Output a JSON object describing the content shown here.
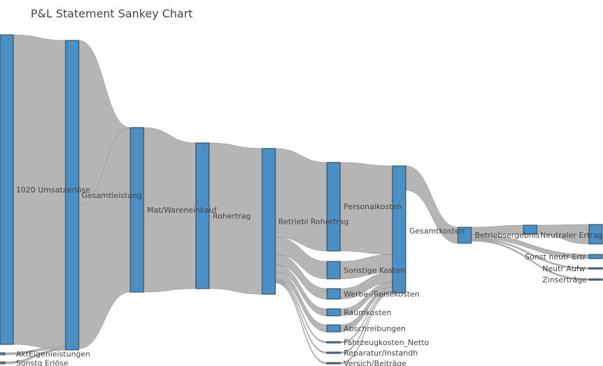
{
  "chart_data": {
    "type": "sankey",
    "title": "P&L Statement Sankey Chart",
    "colors": {
      "node": "#4a90c6",
      "node_stroke": "#2a3d4f",
      "link": "#b5b5b5",
      "link_stroke": "#8a8a8a",
      "text": "#444444"
    },
    "nodes": [
      {
        "id": "umsatz",
        "label": "1020 Umsatzerlöse"
      },
      {
        "id": "akteigen",
        "label": "AktEigenleistungen"
      },
      {
        "id": "sonstberl",
        "label": "Sonstg Erlöse"
      },
      {
        "id": "gesamtl",
        "label": "Gesamtleistung"
      },
      {
        "id": "matware",
        "label": "Mat/Wareneinkauf"
      },
      {
        "id": "rohertrag",
        "label": "Rohertrag"
      },
      {
        "id": "betriebroh",
        "label": "Betriebl Rohertrag"
      },
      {
        "id": "personal",
        "label": "Personalkosten"
      },
      {
        "id": "sonstkost",
        "label": "Sonstige Kosten"
      },
      {
        "id": "werbe",
        "label": "Werbe-/Reisekosten"
      },
      {
        "id": "raum",
        "label": "Raumkosten"
      },
      {
        "id": "abschr",
        "label": "Abschreibungen"
      },
      {
        "id": "fahrzeug",
        "label": "Fahrzeugkosten_Netto"
      },
      {
        "id": "reparatur",
        "label": "Reparatur/Instandh"
      },
      {
        "id": "versich",
        "label": "Versich/Beiträge"
      },
      {
        "id": "gesamtkost",
        "label": "Gesamtkosten"
      },
      {
        "id": "betriebserg",
        "label": "Betriebsergebnis"
      },
      {
        "id": "neutraler",
        "label": "Neutraler Ertrag"
      },
      {
        "id": "sonstneutr",
        "label": "Sonst neutr Ertr"
      },
      {
        "id": "neutraufw",
        "label": "Neutr Aufw"
      },
      {
        "id": "zins",
        "label": "Zinserträge"
      }
    ],
    "links": [
      {
        "source": "umsatz",
        "target": "gesamtl",
        "value": 100
      },
      {
        "source": "akteigen",
        "target": "gesamtl",
        "value": 0.4
      },
      {
        "source": "sonstberl",
        "target": "gesamtl",
        "value": 0.3
      },
      {
        "source": "gesamtl",
        "target": "rohertrag",
        "value": 51
      },
      {
        "source": "gesamtl",
        "target": "matware",
        "value": 49
      },
      {
        "source": "matware",
        "target": "rohertrag",
        "value": 45
      },
      {
        "source": "rohertrag",
        "target": "betriebroh",
        "value": 96
      },
      {
        "source": "betriebroh",
        "target": "personal",
        "value": 54
      },
      {
        "source": "betriebroh",
        "target": "sonstkost",
        "value": 10
      },
      {
        "source": "betriebroh",
        "target": "werbe",
        "value": 6
      },
      {
        "source": "betriebroh",
        "target": "raum",
        "value": 4.5
      },
      {
        "source": "betriebroh",
        "target": "abschr",
        "value": 4.5
      },
      {
        "source": "betriebroh",
        "target": "fahrzeug",
        "value": 0.4
      },
      {
        "source": "betriebroh",
        "target": "reparatur",
        "value": 0.4
      },
      {
        "source": "betriebroh",
        "target": "versich",
        "value": 0.4
      },
      {
        "source": "personal",
        "target": "gesamtkost",
        "value": 54
      },
      {
        "source": "sonstkost",
        "target": "gesamtkost",
        "value": 10
      },
      {
        "source": "werbe",
        "target": "gesamtkost",
        "value": 6
      },
      {
        "source": "raum",
        "target": "gesamtkost",
        "value": 4.5
      },
      {
        "source": "abschr",
        "target": "gesamtkost",
        "value": 4.5
      },
      {
        "source": "fahrzeug",
        "target": "gesamtkost",
        "value": 0.4
      },
      {
        "source": "reparatur",
        "target": "gesamtkost",
        "value": 0.4
      },
      {
        "source": "versich",
        "target": "gesamtkost",
        "value": 0.4
      },
      {
        "source": "gesamtkost",
        "target": "betriebserg",
        "value": 9
      },
      {
        "source": "betriebserg",
        "target": "neutraler",
        "value": 6
      },
      {
        "source": "betriebserg",
        "target": "sonstneutr",
        "value": 2.5
      },
      {
        "source": "betriebserg",
        "target": "neutraufw",
        "value": 0.3
      },
      {
        "source": "betriebserg",
        "target": "zins",
        "value": 0.3
      }
    ]
  }
}
